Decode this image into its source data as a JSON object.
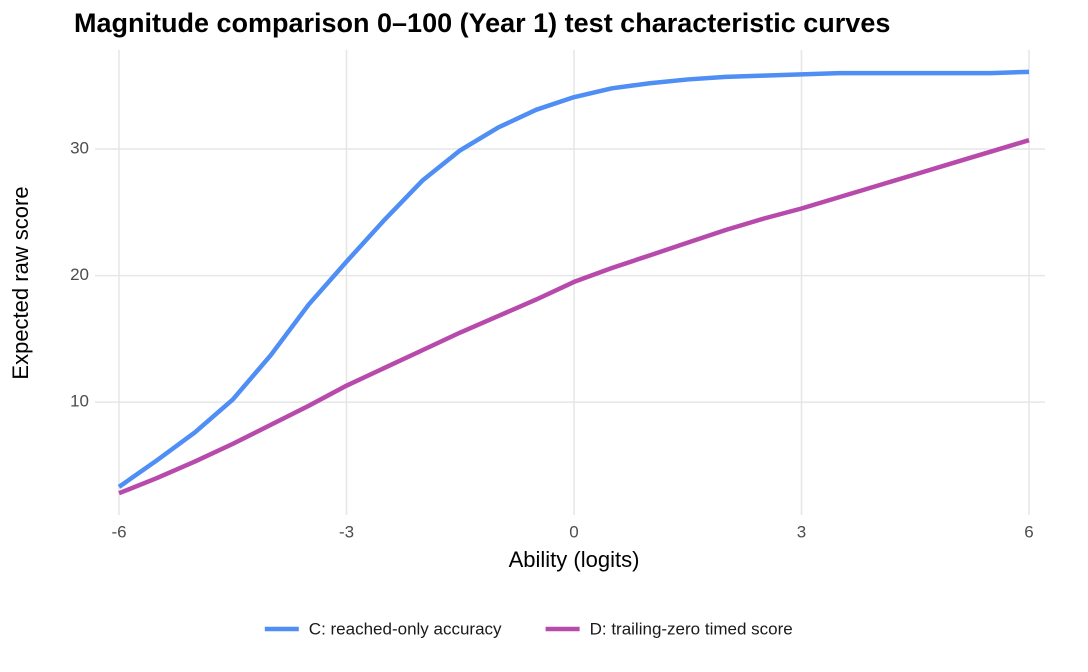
{
  "chart_data": {
    "type": "line",
    "title": "Magnitude comparison 0–100 (Year 1) test characteristic curves",
    "x_label": "Ability (logits)",
    "y_label": "Expected raw score",
    "x": [
      -6,
      -5.5,
      -5,
      -4.5,
      -4,
      -3.5,
      -3,
      -2.5,
      -2,
      -1.5,
      -1,
      -0.5,
      0,
      0.5,
      1,
      1.5,
      2,
      2.5,
      3,
      3.5,
      4,
      4.5,
      5,
      5.5,
      6
    ],
    "series": [
      {
        "name": "C: reached-only accuracy",
        "color": "#4f8ef5",
        "values": [
          3.3,
          5.4,
          7.6,
          10.2,
          13.7,
          17.7,
          21.1,
          24.4,
          27.5,
          29.9,
          31.7,
          33.1,
          34.1,
          34.8,
          35.2,
          35.5,
          35.7,
          35.8,
          35.9,
          36.0,
          36.0,
          36.0,
          36.0,
          36.0,
          36.1
        ]
      },
      {
        "name": "D: trailing-zero timed score",
        "color": "#b74aab",
        "values": [
          2.8,
          4.0,
          5.3,
          6.7,
          8.2,
          9.7,
          11.3,
          12.7,
          14.1,
          15.5,
          16.8,
          18.1,
          19.5,
          20.6,
          21.6,
          22.6,
          23.6,
          24.5,
          25.3,
          26.2,
          27.1,
          28.0,
          28.9,
          29.8,
          30.7
        ]
      }
    ],
    "xlim": [
      -6.6,
      6.6
    ],
    "xticks": [
      -6,
      -3,
      0,
      3,
      6
    ],
    "ylim": [
      1.0,
      37.7
    ],
    "yticks": [
      10,
      20,
      30
    ],
    "grid": true,
    "legend": "bottom"
  }
}
